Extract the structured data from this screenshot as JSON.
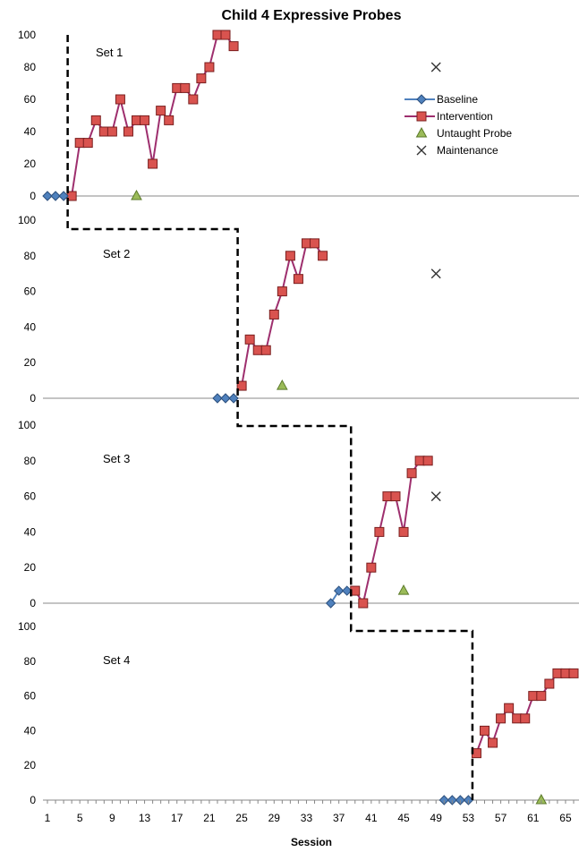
{
  "chart_data": {
    "type": "line",
    "title": "Child 4 Expressive Probes",
    "xlabel": "Session",
    "ylabel": "",
    "xlim": [
      1,
      66
    ],
    "x_ticks": [
      1,
      5,
      9,
      13,
      17,
      21,
      25,
      29,
      33,
      37,
      41,
      45,
      49,
      53,
      57,
      61,
      65
    ],
    "y_ticks": [
      0,
      20,
      40,
      60,
      80,
      100
    ],
    "ylim": [
      0,
      100
    ],
    "legend": {
      "position": "top-right of first panel",
      "entries": [
        "Baseline",
        "Intervention",
        "Untaught Probe",
        "Maintenance"
      ]
    },
    "colors": {
      "baseline_fill": "#4f81bd",
      "intervention_line": "#9e2f6e",
      "intervention_fill": "#d9534f",
      "probe_fill": "#9bbb59",
      "maintenance": "#333333"
    },
    "panels": [
      {
        "label": "Set 1",
        "phase_change_after_x": 3.5,
        "series": [
          {
            "name": "Baseline",
            "x": [
              1,
              2,
              3
            ],
            "y": [
              0,
              0,
              0
            ]
          },
          {
            "name": "Intervention",
            "x": [
              4,
              5,
              6,
              7,
              8,
              9,
              10,
              11,
              12,
              13,
              14,
              15,
              16,
              17,
              18,
              19,
              20,
              21,
              22,
              23,
              24
            ],
            "y": [
              0,
              33,
              33,
              47,
              40,
              40,
              60,
              40,
              47,
              47,
              20,
              53,
              47,
              67,
              67,
              60,
              73,
              80,
              100,
              100,
              93
            ]
          },
          {
            "name": "Untaught Probe",
            "x": [
              12
            ],
            "y": [
              0
            ]
          },
          {
            "name": "Maintenance",
            "x": [
              49
            ],
            "y": [
              80
            ]
          }
        ]
      },
      {
        "label": "Set 2",
        "phase_change_after_x": 24.5,
        "series": [
          {
            "name": "Baseline",
            "x": [
              22,
              23,
              24
            ],
            "y": [
              0,
              0,
              0
            ]
          },
          {
            "name": "Intervention",
            "x": [
              25,
              26,
              27,
              28,
              29,
              30,
              31,
              32,
              33,
              34,
              35
            ],
            "y": [
              7,
              33,
              27,
              27,
              47,
              60,
              80,
              67,
              87,
              87,
              80
            ]
          },
          {
            "name": "Untaught Probe",
            "x": [
              30
            ],
            "y": [
              7
            ]
          },
          {
            "name": "Maintenance",
            "x": [
              49
            ],
            "y": [
              70
            ]
          }
        ]
      },
      {
        "label": "Set 3",
        "phase_change_after_x": 38.5,
        "series": [
          {
            "name": "Baseline",
            "x": [
              36,
              37,
              38
            ],
            "y": [
              0,
              7,
              7
            ]
          },
          {
            "name": "Intervention",
            "x": [
              39,
              40,
              41,
              42,
              43,
              44,
              45,
              46,
              47,
              48
            ],
            "y": [
              7,
              0,
              20,
              40,
              60,
              60,
              40,
              73,
              80,
              80
            ]
          },
          {
            "name": "Untaught Probe",
            "x": [
              45
            ],
            "y": [
              7
            ]
          },
          {
            "name": "Maintenance",
            "x": [
              49
            ],
            "y": [
              60
            ]
          }
        ]
      },
      {
        "label": "Set 4",
        "phase_change_after_x": 53.5,
        "series": [
          {
            "name": "Baseline",
            "x": [
              50,
              51,
              52,
              53
            ],
            "y": [
              0,
              0,
              0,
              0
            ]
          },
          {
            "name": "Intervention",
            "x": [
              54,
              55,
              56,
              57,
              58,
              59,
              60,
              61,
              62,
              63,
              64,
              65,
              66
            ],
            "y": [
              27,
              40,
              33,
              47,
              53,
              47,
              47,
              60,
              60,
              67,
              73,
              73,
              73
            ]
          },
          {
            "name": "Untaught Probe",
            "x": [
              62
            ],
            "y": [
              0
            ]
          }
        ]
      }
    ]
  }
}
